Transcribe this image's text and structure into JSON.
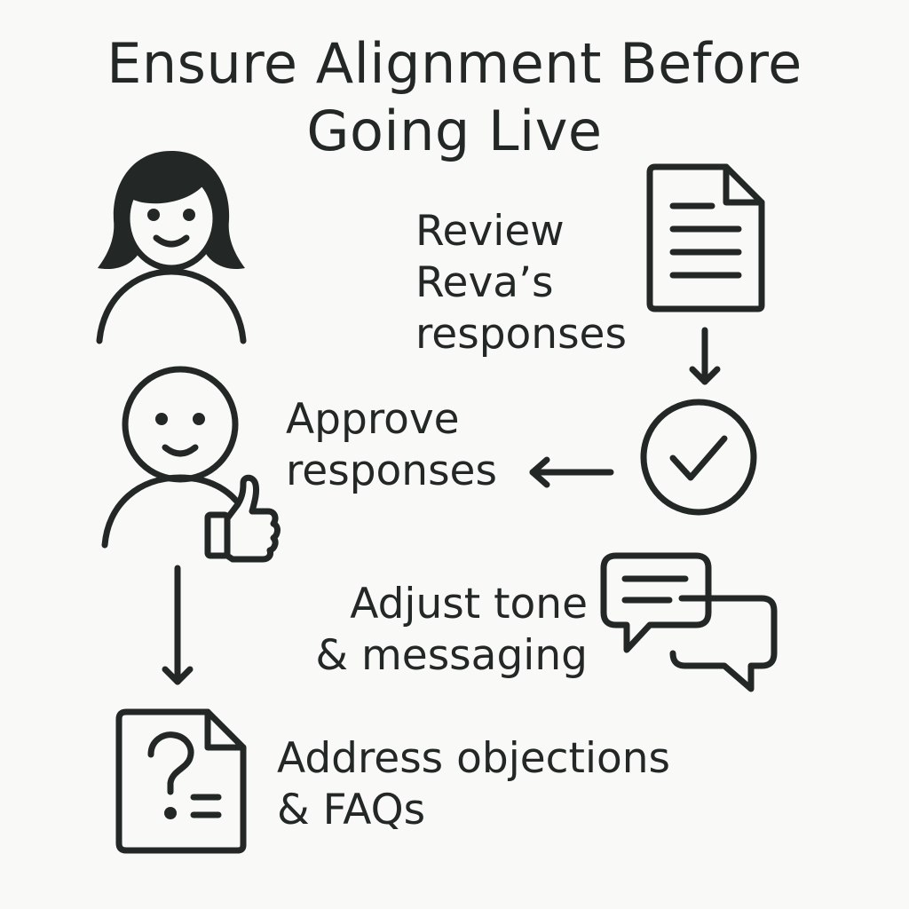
{
  "title": {
    "line1": "Ensure Alignment Before",
    "line2": "Going Live"
  },
  "steps": [
    {
      "lines": [
        "Review",
        "Reva’s",
        "responses"
      ],
      "icon": "document-icon"
    },
    {
      "lines": [
        "Approve",
        "responses"
      ],
      "icon": "checkmark-circle-icon"
    },
    {
      "lines": [
        "Adjust tone",
        "& messaging"
      ],
      "icon": "chat-bubbles-icon"
    },
    {
      "lines": [
        "Address objections",
        "& FAQs"
      ],
      "icon": "faq-document-icon"
    }
  ],
  "people": [
    {
      "icon": "woman-avatar-icon"
    },
    {
      "icon": "thumbs-up-person-icon"
    }
  ],
  "colors": {
    "background": "#f9f9f8",
    "ink": "#232826"
  }
}
